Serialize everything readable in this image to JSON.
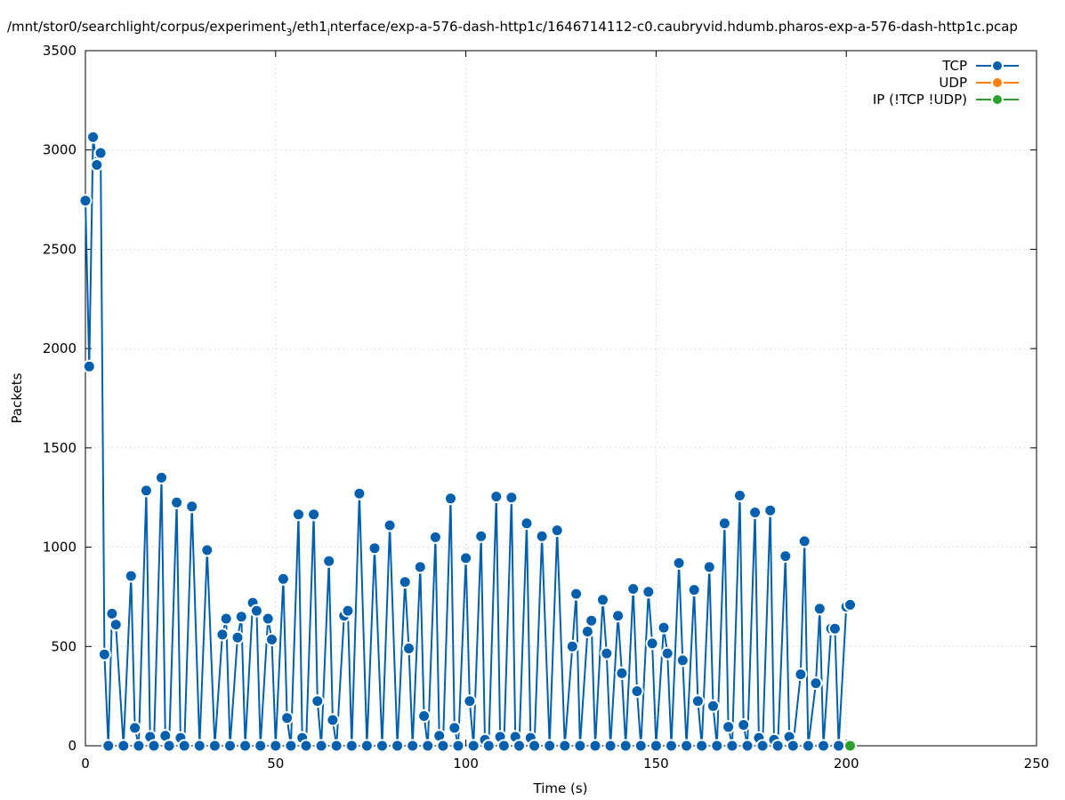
{
  "chart_data": {
    "type": "line",
    "title": "/mnt/stor0/searchlight/corpus/experiment_3/eth1_interface/exp-a-576-dash-http1c/1646714112-c0.caubryvid.hdumb.pharos-exp-a-576-dash-http1c.pcap",
    "title_parts": {
      "a": "/mnt/stor0/searchlight/corpus/experiment",
      "sub1": "3",
      "b": "/eth1",
      "sub2": "i",
      "c": "nterface/exp-a-576-dash-http1c/1646714112-c0.caubryvid.hdumb.pharos-exp-a-576-dash-http1c.pcap"
    },
    "xlabel": "Time (s)",
    "ylabel": "Packets",
    "xlim": [
      0,
      250
    ],
    "ylim": [
      0,
      3500
    ],
    "xticks": [
      0,
      50,
      100,
      150,
      200,
      250
    ],
    "yticks": [
      0,
      500,
      1000,
      1500,
      2000,
      2500,
      3000,
      3500
    ],
    "grid": true,
    "legend_position": "top-right",
    "series": [
      {
        "name": "TCP",
        "color": "#0060ad",
        "points": [
          [
            0,
            2745
          ],
          [
            1,
            1910
          ],
          [
            2,
            3065
          ],
          [
            3,
            2925
          ],
          [
            4,
            2985
          ],
          [
            5,
            460
          ],
          [
            6,
            0
          ],
          [
            7,
            665
          ],
          [
            8,
            610
          ],
          [
            10,
            0
          ],
          [
            12,
            855
          ],
          [
            13,
            90
          ],
          [
            14,
            0
          ],
          [
            16,
            1285
          ],
          [
            17,
            45
          ],
          [
            18,
            0
          ],
          [
            20,
            1350
          ],
          [
            21,
            50
          ],
          [
            22,
            0
          ],
          [
            24,
            1225
          ],
          [
            25,
            40
          ],
          [
            26,
            0
          ],
          [
            28,
            1205
          ],
          [
            30,
            0
          ],
          [
            32,
            985
          ],
          [
            34,
            0
          ],
          [
            36,
            560
          ],
          [
            37,
            640
          ],
          [
            38,
            0
          ],
          [
            40,
            545
          ],
          [
            41,
            650
          ],
          [
            42,
            0
          ],
          [
            44,
            720
          ],
          [
            45,
            680
          ],
          [
            46,
            0
          ],
          [
            48,
            640
          ],
          [
            49,
            535
          ],
          [
            50,
            0
          ],
          [
            52,
            840
          ],
          [
            53,
            140
          ],
          [
            54,
            0
          ],
          [
            56,
            1165
          ],
          [
            57,
            40
          ],
          [
            58,
            0
          ],
          [
            60,
            1165
          ],
          [
            61,
            225
          ],
          [
            62,
            0
          ],
          [
            64,
            930
          ],
          [
            65,
            130
          ],
          [
            66,
            0
          ],
          [
            68,
            655
          ],
          [
            69,
            680
          ],
          [
            70,
            0
          ],
          [
            72,
            1270
          ],
          [
            74,
            0
          ],
          [
            76,
            995
          ],
          [
            78,
            0
          ],
          [
            80,
            1110
          ],
          [
            82,
            0
          ],
          [
            84,
            825
          ],
          [
            85,
            490
          ],
          [
            86,
            0
          ],
          [
            88,
            900
          ],
          [
            89,
            150
          ],
          [
            90,
            0
          ],
          [
            92,
            1050
          ],
          [
            93,
            50
          ],
          [
            94,
            0
          ],
          [
            96,
            1245
          ],
          [
            97,
            90
          ],
          [
            98,
            0
          ],
          [
            100,
            945
          ],
          [
            101,
            225
          ],
          [
            102,
            0
          ],
          [
            104,
            1055
          ],
          [
            105,
            30
          ],
          [
            106,
            0
          ],
          [
            108,
            1255
          ],
          [
            109,
            45
          ],
          [
            110,
            0
          ],
          [
            112,
            1250
          ],
          [
            113,
            45
          ],
          [
            114,
            0
          ],
          [
            116,
            1120
          ],
          [
            117,
            40
          ],
          [
            118,
            0
          ],
          [
            120,
            1055
          ],
          [
            122,
            0
          ],
          [
            124,
            1085
          ],
          [
            126,
            0
          ],
          [
            128,
            500
          ],
          [
            129,
            765
          ],
          [
            130,
            0
          ],
          [
            132,
            575
          ],
          [
            133,
            630
          ],
          [
            134,
            0
          ],
          [
            136,
            735
          ],
          [
            137,
            465
          ],
          [
            138,
            0
          ],
          [
            140,
            655
          ],
          [
            141,
            365
          ],
          [
            142,
            0
          ],
          [
            144,
            790
          ],
          [
            145,
            275
          ],
          [
            146,
            0
          ],
          [
            148,
            775
          ],
          [
            149,
            515
          ],
          [
            150,
            0
          ],
          [
            152,
            595
          ],
          [
            153,
            465
          ],
          [
            154,
            0
          ],
          [
            156,
            920
          ],
          [
            157,
            430
          ],
          [
            158,
            0
          ],
          [
            160,
            785
          ],
          [
            161,
            225
          ],
          [
            162,
            0
          ],
          [
            164,
            900
          ],
          [
            165,
            200
          ],
          [
            166,
            0
          ],
          [
            168,
            1120
          ],
          [
            169,
            95
          ],
          [
            170,
            0
          ],
          [
            172,
            1260
          ],
          [
            173,
            105
          ],
          [
            174,
            0
          ],
          [
            176,
            1175
          ],
          [
            177,
            40
          ],
          [
            178,
            0
          ],
          [
            180,
            1185
          ],
          [
            181,
            30
          ],
          [
            182,
            0
          ],
          [
            184,
            955
          ],
          [
            185,
            45
          ],
          [
            186,
            0
          ],
          [
            188,
            360
          ],
          [
            189,
            1030
          ],
          [
            190,
            0
          ],
          [
            192,
            315
          ],
          [
            193,
            690
          ],
          [
            194,
            0
          ],
          [
            196,
            590
          ],
          [
            197,
            590
          ],
          [
            198,
            0
          ],
          [
            200,
            700
          ],
          [
            201,
            710
          ]
        ]
      },
      {
        "name": "UDP",
        "color": "#ff7f0e",
        "points": []
      },
      {
        "name": "IP (!TCP  !UDP)",
        "color": "#2ca02c",
        "points": [
          [
            201,
            0
          ]
        ]
      }
    ]
  }
}
